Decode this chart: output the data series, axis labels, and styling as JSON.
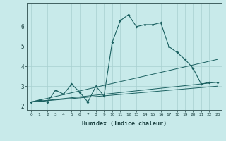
{
  "xlabel": "Humidex (Indice chaleur)",
  "ylabel": "",
  "background_color": "#c8eaea",
  "grid_color": "#a8d0d0",
  "line_color": "#1a6060",
  "xlim": [
    -0.5,
    23.5
  ],
  "ylim": [
    1.8,
    7.2
  ],
  "xticks": [
    0,
    1,
    2,
    3,
    4,
    5,
    6,
    7,
    8,
    9,
    10,
    11,
    12,
    13,
    14,
    15,
    16,
    17,
    18,
    19,
    20,
    21,
    22,
    23
  ],
  "yticks": [
    2,
    3,
    4,
    5,
    6
  ],
  "line1_x": [
    0,
    1,
    2,
    3,
    4,
    5,
    6,
    7,
    8,
    9,
    10,
    11,
    12,
    13,
    14,
    15,
    16,
    17,
    18,
    19,
    20,
    21,
    22,
    23
  ],
  "line1_y": [
    2.2,
    2.3,
    2.2,
    2.8,
    2.6,
    3.1,
    2.7,
    2.2,
    3.0,
    2.5,
    5.2,
    6.3,
    6.6,
    6.0,
    6.1,
    6.1,
    6.2,
    5.0,
    4.7,
    4.35,
    3.9,
    3.1,
    3.2,
    3.2
  ],
  "line2_x": [
    0,
    23
  ],
  "line2_y": [
    2.2,
    3.2
  ],
  "line3_x": [
    0,
    23
  ],
  "line3_y": [
    2.2,
    4.35
  ],
  "line4_x": [
    0,
    23
  ],
  "line4_y": [
    2.2,
    3.0
  ]
}
